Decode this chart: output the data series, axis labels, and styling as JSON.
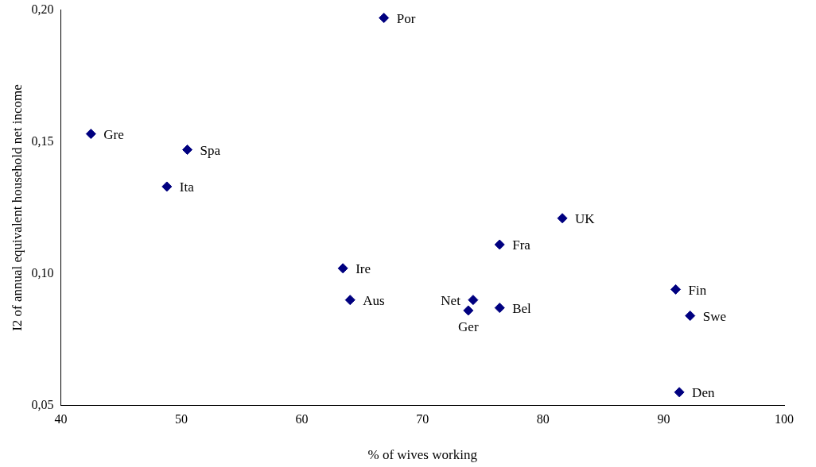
{
  "chart_data": {
    "type": "scatter",
    "xlabel": "% of wives working",
    "ylabel": "I2 of annual equivalent household net income",
    "x": [
      66.8,
      42.5,
      50.5,
      48.8,
      81.6,
      76.4,
      63.4,
      64.0,
      74.2,
      73.8,
      76.4,
      91.0,
      92.2,
      91.3
    ],
    "series": [
      {
        "color": "#000080",
        "values": [
          0.197,
          0.153,
          0.147,
          0.133,
          0.121,
          0.111,
          0.102,
          0.09,
          0.09,
          0.086,
          0.087,
          0.094,
          0.084,
          0.055
        ]
      }
    ],
    "annotations": [
      {
        "text": "Por",
        "x": 66.8,
        "y": 0.197
      },
      {
        "text": "Gre",
        "x": 42.5,
        "y": 0.153
      },
      {
        "text": "Spa",
        "x": 50.5,
        "y": 0.147
      },
      {
        "text": "Ita",
        "x": 48.8,
        "y": 0.133
      },
      {
        "text": "UK",
        "x": 81.6,
        "y": 0.121
      },
      {
        "text": "Fra",
        "x": 76.4,
        "y": 0.111
      },
      {
        "text": "Ire",
        "x": 63.4,
        "y": 0.102
      },
      {
        "text": "Aus",
        "x": 64.0,
        "y": 0.09
      },
      {
        "text": "Net",
        "x": 74.2,
        "y": 0.09
      },
      {
        "text": "Ger",
        "x": 73.8,
        "y": 0.086
      },
      {
        "text": "Bel",
        "x": 76.4,
        "y": 0.087
      },
      {
        "text": "Fin",
        "x": 91.0,
        "y": 0.094
      },
      {
        "text": "Swe",
        "x": 92.2,
        "y": 0.084
      },
      {
        "text": "Den",
        "x": 91.3,
        "y": 0.055
      }
    ],
    "xlim": [
      40,
      100
    ],
    "xticks": [
      40,
      50,
      60,
      70,
      80,
      90,
      100
    ],
    "ylim": [
      0.05,
      0.2
    ],
    "yticks": [
      {
        "value": 0.05,
        "label": "0,05"
      },
      {
        "value": 0.1,
        "label": "0,10"
      },
      {
        "value": 0.15,
        "label": "0,15"
      },
      {
        "value": 0.2,
        "label": "0,20"
      }
    ],
    "grid": false,
    "legend": false,
    "marker": "diamond"
  }
}
